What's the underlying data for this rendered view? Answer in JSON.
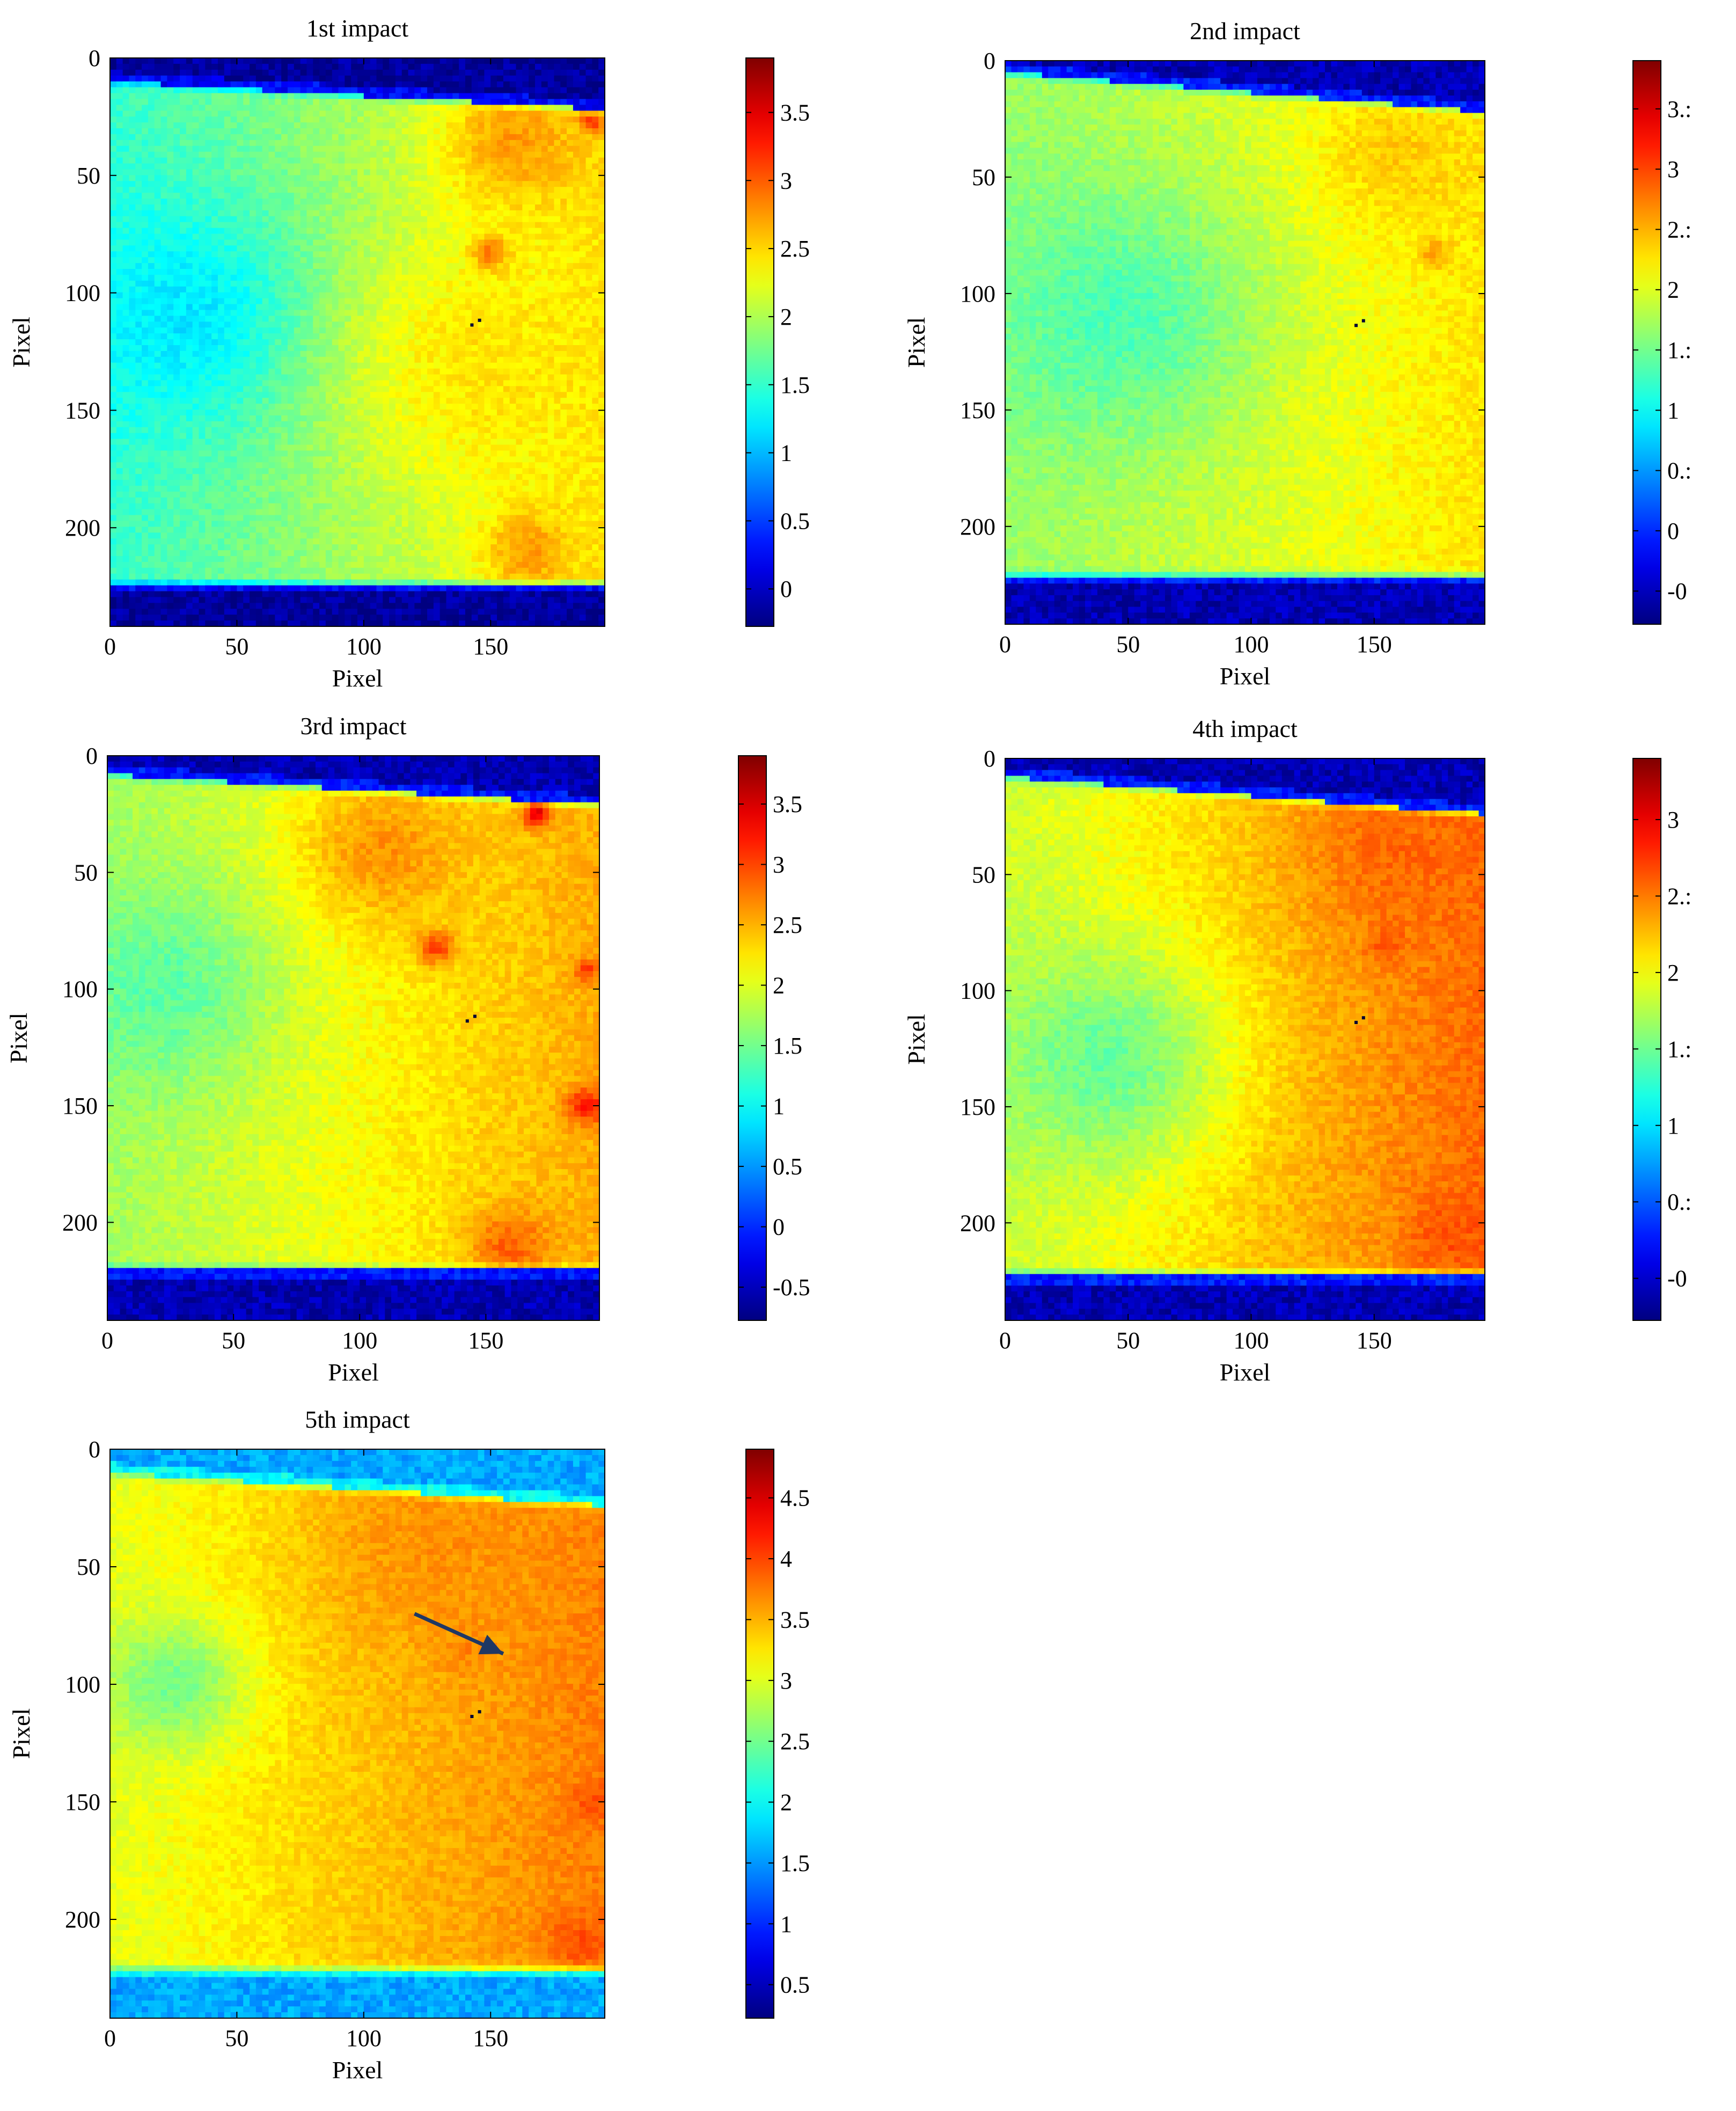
{
  "figure": {
    "panels": [
      {
        "title": "1st impact",
        "xlabel": "Pixel",
        "ylabel": "Pixel",
        "xticks": [
          "0",
          "50",
          "100",
          "150"
        ],
        "yticks": [
          "0",
          "50",
          "100",
          "150",
          "200"
        ],
        "colorbar_ticks": [
          "0",
          "0.5",
          "1",
          "1.5",
          "2",
          "2.5",
          "3",
          "3.5"
        ]
      },
      {
        "title": "2nd impact",
        "xlabel": "Pixel",
        "ylabel": "Pixel",
        "xticks": [
          "0",
          "50",
          "100",
          "150"
        ],
        "yticks": [
          "0",
          "50",
          "100",
          "150",
          "200"
        ],
        "colorbar_ticks": [
          "-0",
          "0",
          "0.:",
          "1",
          "1.:",
          "2",
          "2.:",
          "3",
          "3.:"
        ]
      },
      {
        "title": "3rd impact",
        "xlabel": "Pixel",
        "ylabel": "Pixel",
        "xticks": [
          "0",
          "50",
          "100",
          "150"
        ],
        "yticks": [
          "0",
          "50",
          "100",
          "150",
          "200"
        ],
        "colorbar_ticks": [
          "-0.5",
          "0",
          "0.5",
          "1",
          "1.5",
          "2",
          "2.5",
          "3",
          "3.5"
        ]
      },
      {
        "title": "4th impact",
        "xlabel": "Pixel",
        "ylabel": "Pixel",
        "xticks": [
          "0",
          "50",
          "100",
          "150"
        ],
        "yticks": [
          "0",
          "50",
          "100",
          "150",
          "200"
        ],
        "colorbar_ticks": [
          "-0",
          "0.:",
          "1",
          "1.:",
          "2",
          "2.:",
          "3"
        ]
      },
      {
        "title": "5th impact",
        "xlabel": "Pixel",
        "ylabel": "Pixel",
        "xticks": [
          "0",
          "50",
          "100",
          "150"
        ],
        "yticks": [
          "0",
          "50",
          "100",
          "150",
          "200"
        ],
        "colorbar_ticks": [
          "0.5",
          "1",
          "1.5",
          "2",
          "2.5",
          "3",
          "3.5",
          "4",
          "4.5"
        ]
      }
    ],
    "colors": {
      "colormap": [
        "#00008f",
        "#0000ff",
        "#00ffff",
        "#ffff00",
        "#ff0000",
        "#800000"
      ],
      "arrow": "#1f3864"
    }
  },
  "chart_data": [
    {
      "type": "heatmap",
      "title": "1st impact",
      "xlabel": "Pixel",
      "ylabel": "Pixel",
      "xlim": [
        0,
        195
      ],
      "ylim": [
        242,
        0
      ],
      "colormap": "jet",
      "clim": [
        -0.2,
        3.8
      ],
      "strip_bounds": {
        "top_left": 10,
        "top_right": 22,
        "bottom": 224
      },
      "background_value": -0.1,
      "spots": [
        {
          "x": 30,
          "y": 110,
          "r": 60,
          "value": 1.2
        },
        {
          "x": 150,
          "y": 130,
          "r": 70,
          "value": 2.4
        },
        {
          "x": 160,
          "y": 35,
          "r": 35,
          "value": 2.7
        },
        {
          "x": 150,
          "y": 83,
          "r": 9,
          "value": 2.8
        },
        {
          "x": 190,
          "y": 27,
          "r": 6,
          "value": 3.1
        },
        {
          "x": 165,
          "y": 210,
          "r": 22,
          "value": 2.7
        }
      ],
      "base_value": 1.5,
      "right_gradient": 0.9
    },
    {
      "type": "heatmap",
      "title": "2nd impact",
      "xlabel": "Pixel",
      "ylabel": "Pixel",
      "xlim": [
        0,
        195
      ],
      "ylim": [
        242,
        0
      ],
      "colormap": "jet",
      "clim": [
        -0.6,
        3.4
      ],
      "strip_bounds": {
        "top_left": 5,
        "top_right": 22,
        "bottom": 221
      },
      "background_value": -0.4,
      "spots": [
        {
          "x": 45,
          "y": 110,
          "r": 70,
          "value": 1.2
        },
        {
          "x": 175,
          "y": 83,
          "r": 8,
          "value": 2.3
        },
        {
          "x": 160,
          "y": 40,
          "r": 40,
          "value": 2.1
        }
      ],
      "base_value": 1.5,
      "right_gradient": 0.5
    },
    {
      "type": "heatmap",
      "title": "3rd impact",
      "xlabel": "Pixel",
      "ylabel": "Pixel",
      "xlim": [
        0,
        195
      ],
      "ylim": [
        242,
        0
      ],
      "colormap": "jet",
      "clim": [
        -0.6,
        3.5
      ],
      "strip_bounds": {
        "top_left": 8,
        "top_right": 21,
        "bottom": 220
      },
      "background_value": -0.4,
      "spots": [
        {
          "x": 20,
          "y": 100,
          "r": 55,
          "value": 1.3
        },
        {
          "x": 130,
          "y": 82,
          "r": 9,
          "value": 2.8
        },
        {
          "x": 170,
          "y": 25,
          "r": 7,
          "value": 3.1
        },
        {
          "x": 190,
          "y": 150,
          "r": 10,
          "value": 2.9
        },
        {
          "x": 190,
          "y": 92,
          "r": 6,
          "value": 2.8
        },
        {
          "x": 160,
          "y": 210,
          "r": 20,
          "value": 2.6
        },
        {
          "x": 110,
          "y": 40,
          "r": 40,
          "value": 2.4
        }
      ],
      "base_value": 1.6,
      "right_gradient": 0.7
    },
    {
      "type": "heatmap",
      "title": "4th impact",
      "xlabel": "Pixel",
      "ylabel": "Pixel",
      "xlim": [
        0,
        195
      ],
      "ylim": [
        242,
        0
      ],
      "colormap": "jet",
      "clim": [
        -0.6,
        3.4
      ],
      "strip_bounds": {
        "top_left": 8,
        "top_right": 24,
        "bottom": 222
      },
      "background_value": -0.4,
      "spots": [
        {
          "x": 40,
          "y": 130,
          "r": 60,
          "value": 1.3
        },
        {
          "x": 155,
          "y": 80,
          "r": 10,
          "value": 2.6
        },
        {
          "x": 160,
          "y": 40,
          "r": 45,
          "value": 2.5
        },
        {
          "x": 180,
          "y": 205,
          "r": 20,
          "value": 2.6
        }
      ],
      "base_value": 1.7,
      "right_gradient": 0.8
    },
    {
      "type": "heatmap",
      "title": "5th impact",
      "xlabel": "Pixel",
      "ylabel": "Pixel",
      "xlim": [
        0,
        195
      ],
      "ylim": [
        242,
        0
      ],
      "colormap": "jet",
      "clim": [
        0.3,
        4.8
      ],
      "strip_bounds": {
        "top_left": 10,
        "top_right": 24,
        "bottom": 221
      },
      "background_value": 1.6,
      "spots": [
        {
          "x": 25,
          "y": 100,
          "r": 35,
          "value": 2.5
        },
        {
          "x": 140,
          "y": 85,
          "r": 12,
          "value": 3.7
        },
        {
          "x": 190,
          "y": 150,
          "r": 10,
          "value": 3.9
        },
        {
          "x": 185,
          "y": 210,
          "r": 15,
          "value": 3.9
        },
        {
          "x": 130,
          "y": 40,
          "r": 60,
          "value": 3.6
        }
      ],
      "base_value": 3.0,
      "right_gradient": 0.7,
      "annotation": {
        "type": "arrow",
        "from": [
          120,
          70
        ],
        "to": [
          155,
          87
        ]
      }
    }
  ]
}
